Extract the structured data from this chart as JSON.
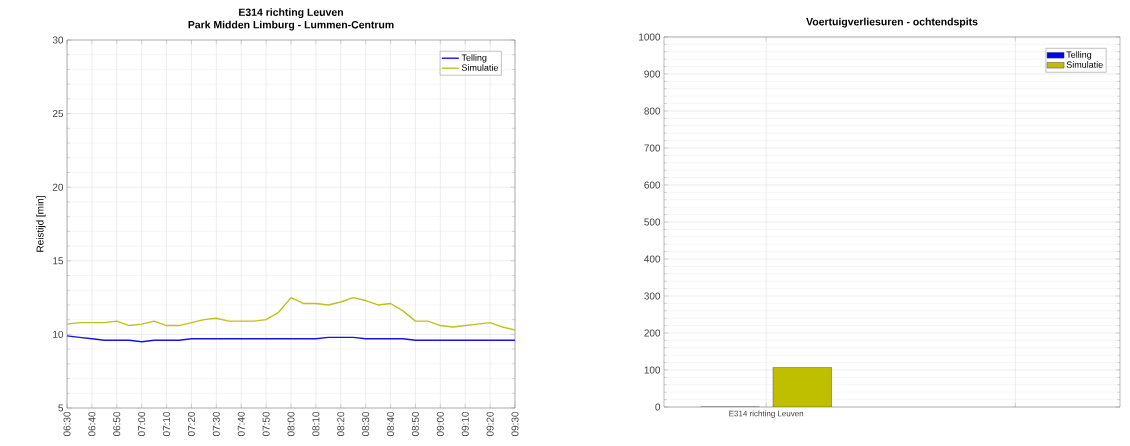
{
  "chart_data": [
    {
      "type": "line",
      "title": "E314 richting Leuven",
      "subtitle": "Park Midden Limburg - Lummen-Centrum",
      "ylabel": "Reistijd [min]",
      "x": [
        6.5,
        6.5833,
        6.6667,
        6.75,
        6.8333,
        6.9167,
        7.0,
        7.0833,
        7.1667,
        7.25,
        7.3333,
        7.4167,
        7.5,
        7.5833,
        7.6667,
        7.75,
        7.8333,
        7.9167,
        8.0,
        8.0833,
        8.1667,
        8.25,
        8.3333,
        8.4167,
        8.5,
        8.5833,
        8.6667,
        8.75,
        8.8333,
        8.9167,
        9.0,
        9.0833,
        9.1667,
        9.25,
        9.3333,
        9.4167,
        9.5
      ],
      "series": [
        {
          "name": "Telling",
          "color": "#1414e6",
          "values": [
            9.9,
            9.8,
            9.7,
            9.6,
            9.6,
            9.6,
            9.5,
            9.6,
            9.6,
            9.6,
            9.7,
            9.7,
            9.7,
            9.7,
            9.7,
            9.7,
            9.7,
            9.7,
            9.7,
            9.7,
            9.7,
            9.8,
            9.8,
            9.8,
            9.7,
            9.7,
            9.7,
            9.7,
            9.6,
            9.6,
            9.6,
            9.6,
            9.6,
            9.6,
            9.6,
            9.6,
            9.6
          ]
        },
        {
          "name": "Simulatie",
          "color": "#c0c020",
          "values": [
            10.7,
            10.8,
            10.8,
            10.8,
            10.9,
            10.6,
            10.7,
            10.9,
            10.6,
            10.6,
            10.8,
            11.0,
            11.1,
            10.9,
            10.9,
            10.9,
            11.0,
            11.5,
            12.5,
            12.1,
            12.1,
            12.0,
            12.2,
            12.5,
            12.3,
            12.0,
            12.1,
            11.6,
            10.9,
            10.9,
            10.6,
            10.5,
            10.6,
            10.7,
            10.8,
            10.5,
            10.3
          ]
        }
      ],
      "xlim": [
        6.5,
        9.5
      ],
      "xticks": [
        {
          "value": 6.5,
          "label": "06:30"
        },
        {
          "value": 6.6667,
          "label": "06:40"
        },
        {
          "value": 6.8333,
          "label": "06:50"
        },
        {
          "value": 7.0,
          "label": "07:00"
        },
        {
          "value": 7.1667,
          "label": "07:10"
        },
        {
          "value": 7.3333,
          "label": "07:20"
        },
        {
          "value": 7.5,
          "label": "07:30"
        },
        {
          "value": 7.6667,
          "label": "07:40"
        },
        {
          "value": 7.8333,
          "label": "07:50"
        },
        {
          "value": 8.0,
          "label": "08:00"
        },
        {
          "value": 8.1667,
          "label": "08:10"
        },
        {
          "value": 8.3333,
          "label": "08:20"
        },
        {
          "value": 8.5,
          "label": "08:30"
        },
        {
          "value": 8.6667,
          "label": "08:40"
        },
        {
          "value": 8.8333,
          "label": "08:50"
        },
        {
          "value": 9.0,
          "label": "09:00"
        },
        {
          "value": 9.1667,
          "label": "09:10"
        },
        {
          "value": 9.3333,
          "label": "09:20"
        },
        {
          "value": 9.5,
          "label": "09:30"
        }
      ],
      "ylim": [
        5,
        30
      ],
      "yticks": [
        5,
        10,
        15,
        20,
        25,
        30
      ],
      "grid": true,
      "legend": "top right"
    },
    {
      "type": "bar",
      "title": "Voertuigverliesuren - ochtendspits",
      "categories": [
        "E314 richting Leuven",
        null
      ],
      "series": [
        {
          "name": "Telling",
          "color": "#0000ff",
          "values": [
            0,
            null
          ]
        },
        {
          "name": "Simulatie",
          "color": "#bfbf00",
          "values": [
            107,
            null
          ]
        }
      ],
      "ylim": [
        0,
        1000
      ],
      "yticks": [
        0,
        100,
        200,
        300,
        400,
        500,
        600,
        700,
        800,
        900,
        1000
      ],
      "grid": true,
      "legend": "top right"
    }
  ]
}
